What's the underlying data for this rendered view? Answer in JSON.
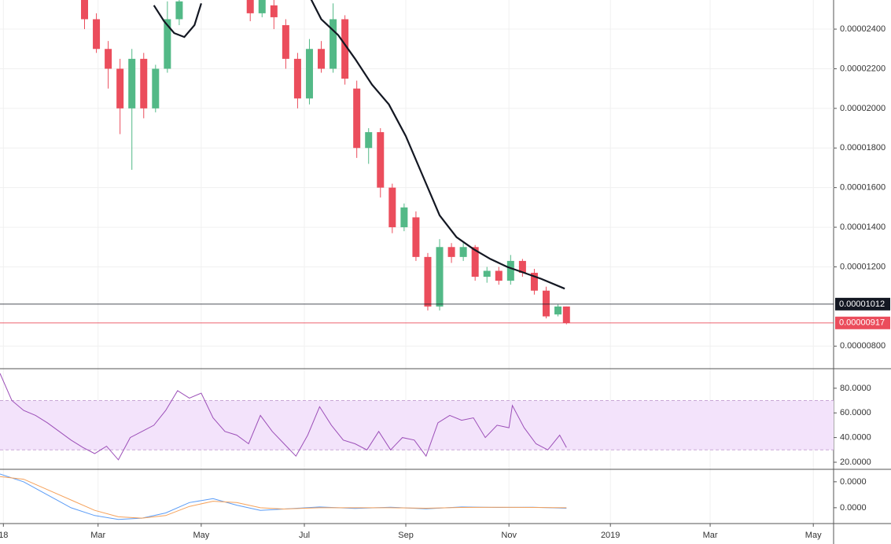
{
  "chart_data": [
    {
      "type": "candlestick",
      "x": [
        50,
        57,
        64,
        71,
        78,
        85,
        92,
        99,
        106,
        148,
        155,
        162,
        169,
        176,
        183,
        190,
        197,
        204,
        211,
        218,
        225,
        232,
        239,
        246,
        253,
        260,
        267,
        274,
        281,
        288,
        295,
        302,
        309,
        316,
        323,
        330,
        335
      ],
      "open": [
        2.55e-05,
        2.45e-05,
        2.3e-05,
        2.2e-05,
        2e-05,
        2.25e-05,
        2e-05,
        2.2e-05,
        2.45e-05,
        2.56e-05,
        2.48e-05,
        2.52e-05,
        2.42e-05,
        2.25e-05,
        2.05e-05,
        2.3e-05,
        2.2e-05,
        2.45e-05,
        2.1e-05,
        1.8e-05,
        1.88e-05,
        1.6e-05,
        1.4e-05,
        1.45e-05,
        1.25e-05,
        1e-05,
        1.3e-05,
        1.25e-05,
        1.3e-05,
        1.15e-05,
        1.18e-05,
        1.13e-05,
        1.23e-05,
        1.17e-05,
        1.08e-05,
        9.6e-06,
        1e-05
      ],
      "high": [
        2.57e-05,
        2.48e-05,
        2.34e-05,
        2.25e-05,
        2.3e-05,
        2.28e-05,
        2.22e-05,
        2.54e-05,
        2.6e-05,
        2.6e-05,
        2.58e-05,
        2.56e-05,
        2.45e-05,
        2.28e-05,
        2.35e-05,
        2.34e-05,
        2.53e-05,
        2.47e-05,
        2.14e-05,
        1.9e-05,
        1.9e-05,
        1.62e-05,
        1.52e-05,
        1.48e-05,
        1.27e-05,
        1.34e-05,
        1.32e-05,
        1.32e-05,
        1.31e-05,
        1.2e-05,
        1.2e-05,
        1.26e-05,
        1.24e-05,
        1.19e-05,
        1.1e-05,
        1.01e-05,
        1e-05
      ],
      "low": [
        2.4e-05,
        2.28e-05,
        2.1e-05,
        1.87e-05,
        1.69e-05,
        1.95e-05,
        1.98e-05,
        2.18e-05,
        2.42e-05,
        2.44e-05,
        2.46e-05,
        2.4e-05,
        2.2e-05,
        2e-05,
        2.02e-05,
        2.18e-05,
        2.18e-05,
        2.12e-05,
        1.75e-05,
        1.72e-05,
        1.55e-05,
        1.37e-05,
        1.38e-05,
        1.23e-05,
        9.8e-06,
        9.8e-06,
        1.22e-05,
        1.23e-05,
        1.13e-05,
        1.12e-05,
        1.11e-05,
        1.11e-05,
        1.15e-05,
        1.06e-05,
        9.4e-06,
        9.5e-06,
        9.1e-06
      ],
      "close": [
        2.45e-05,
        2.3e-05,
        2.2e-05,
        2e-05,
        2.25e-05,
        2e-05,
        2.2e-05,
        2.45e-05,
        2.54e-05,
        2.48e-05,
        2.56e-05,
        2.46e-05,
        2.25e-05,
        2.05e-05,
        2.3e-05,
        2.2e-05,
        2.45e-05,
        2.15e-05,
        1.8e-05,
        1.88e-05,
        1.6e-05,
        1.4e-05,
        1.5e-05,
        1.25e-05,
        1e-05,
        1.3e-05,
        1.25e-05,
        1.3e-05,
        1.15e-05,
        1.18e-05,
        1.13e-05,
        1.23e-05,
        1.17e-05,
        1.08e-05,
        9.5e-06,
        1e-05,
        9.17e-06
      ],
      "up_color": "#53b987",
      "down_color": "#eb4d5c",
      "ma": {
        "color": "#131722",
        "x": [
          91,
          97,
          103,
          109,
          115,
          119,
          150,
          184,
          190,
          200,
          210,
          220,
          230,
          240,
          250,
          260,
          270,
          280,
          290,
          300,
          310,
          320,
          334
        ],
        "values": [
          2.52e-05,
          2.44e-05,
          2.38e-05,
          2.36e-05,
          2.42e-05,
          2.53e-05,
          null,
          2.55e-05,
          2.45e-05,
          2.37e-05,
          2.25e-05,
          2.12e-05,
          2.02e-05,
          1.86e-05,
          1.66e-05,
          1.46e-05,
          1.35e-05,
          1.29e-05,
          1.24e-05,
          1.2e-05,
          1.17e-05,
          1.14e-05,
          1.09e-05
        ]
      },
      "price_lines": [
        {
          "value": 1.012e-05,
          "label": "0.00001012",
          "color": "#131722"
        },
        {
          "value": 9.17e-06,
          "label": "0.00000917",
          "color": "#eb4d5c"
        }
      ],
      "xlim": [
        0,
        493
      ],
      "xticks": [
        {
          "value": 2,
          "label": "18"
        },
        {
          "value": 58,
          "label": "Mar"
        },
        {
          "value": 119,
          "label": "May"
        },
        {
          "value": 180,
          "label": "Jul"
        },
        {
          "value": 240,
          "label": "Sep"
        },
        {
          "value": 301,
          "label": "Nov"
        },
        {
          "value": 361,
          "label": "2019"
        },
        {
          "value": 420,
          "label": "Mar"
        },
        {
          "value": 481,
          "label": "May"
        }
      ],
      "ylim": [
        6.9e-06,
        2.547e-05
      ],
      "yticks": [
        {
          "value": 2.4e-05,
          "label": "0.00002400"
        },
        {
          "value": 2.2e-05,
          "label": "0.00002200"
        },
        {
          "value": 2e-05,
          "label": "0.00002000"
        },
        {
          "value": 1.8e-05,
          "label": "0.00001800"
        },
        {
          "value": 1.6e-05,
          "label": "0.00001600"
        },
        {
          "value": 1.4e-05,
          "label": "0.00001400"
        },
        {
          "value": 1.2e-05,
          "label": "0.00001200"
        },
        {
          "value": 8e-06,
          "label": "0.00000800"
        }
      ],
      "grid": true
    },
    {
      "type": "line",
      "xlim": [
        0,
        493
      ],
      "ylim": [
        14.9,
        95.2
      ],
      "yticks": [
        {
          "value": 80,
          "label": "80.0000"
        },
        {
          "value": 60,
          "label": "60.0000"
        },
        {
          "value": 40,
          "label": "40.0000"
        },
        {
          "value": 20,
          "label": "20.0000"
        }
      ],
      "band": [
        30,
        70
      ],
      "band_color": "#f3e3fb",
      "series": [
        {
          "color": "#9c4fb8",
          "x": [
            0,
            7,
            14,
            21,
            28,
            35,
            42,
            49,
            56,
            63,
            70,
            77,
            84,
            91,
            98,
            105,
            112,
            119,
            126,
            133,
            140,
            147,
            154,
            161,
            168,
            175,
            182,
            189,
            196,
            203,
            210,
            217,
            224,
            231,
            238,
            245,
            252,
            259,
            266,
            273,
            280,
            287,
            294,
            301,
            303,
            310,
            317,
            324,
            331,
            335
          ],
          "values": [
            92,
            70,
            62,
            58,
            52,
            45,
            38,
            32,
            27,
            33,
            22,
            40,
            45,
            50,
            62,
            78,
            72,
            76,
            56,
            45,
            42,
            35,
            58,
            45,
            35,
            25,
            42,
            65,
            50,
            38,
            35,
            30,
            45,
            30,
            40,
            38,
            25,
            52,
            58,
            54,
            56,
            40,
            50,
            48,
            66,
            48,
            35,
            30,
            42,
            32
          ]
        }
      ]
    },
    {
      "type": "line",
      "xlim": [
        0,
        493
      ],
      "ylim": [
        -5.8e-07,
        1.45e-06
      ],
      "yticks": [
        {
          "value": 1e-06,
          "label": "0.0000"
        },
        {
          "value": 0,
          "label": "0.0000"
        }
      ],
      "series": [
        {
          "color": "#5b9cf6",
          "x": [
            0,
            14,
            28,
            42,
            56,
            70,
            84,
            98,
            112,
            126,
            140,
            154,
            168,
            189,
            210,
            231,
            252,
            273,
            294,
            315,
            335
          ],
          "values": [
            1.3e-06,
            1e-06,
            5e-07,
            0,
            -3e-07,
            -4.5e-07,
            -4e-07,
            -2e-07,
            2e-07,
            3.5e-07,
            1e-07,
            -1e-07,
            -5e-08,
            3e-08,
            -3e-08,
            2e-08,
            -4e-08,
            3e-08,
            1e-08,
            2e-08,
            -2e-08
          ]
        },
        {
          "color": "#f5a15a",
          "x": [
            0,
            14,
            28,
            42,
            56,
            70,
            84,
            98,
            112,
            126,
            140,
            154,
            168,
            189,
            210,
            231,
            252,
            273,
            294,
            315,
            335
          ],
          "values": [
            1.2e-06,
            1.1e-06,
            7e-07,
            3e-07,
            -1e-07,
            -3.5e-07,
            -4e-07,
            -3e-07,
            5e-08,
            2.5e-07,
            2e-07,
            0,
            -5e-08,
            0,
            0,
            0,
            -2e-08,
            1e-08,
            2e-08,
            1e-08,
            0
          ]
        }
      ]
    }
  ]
}
